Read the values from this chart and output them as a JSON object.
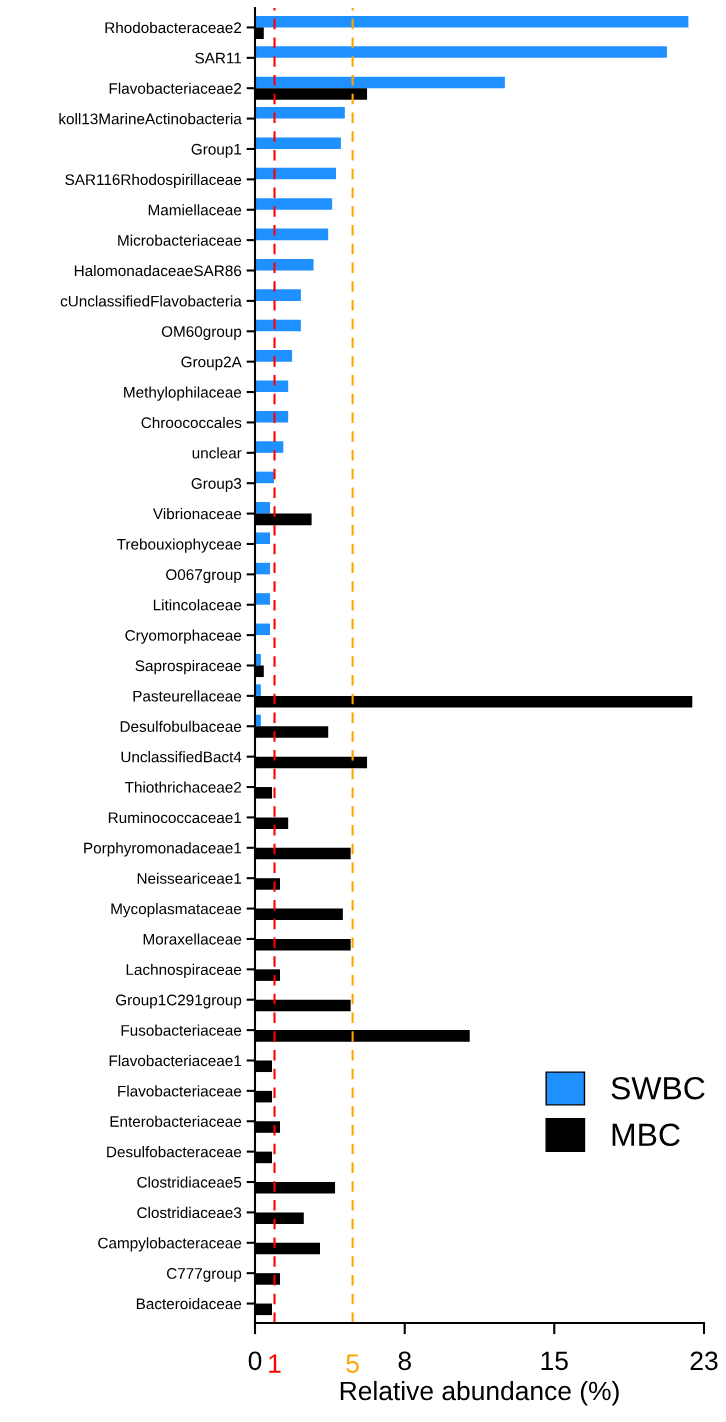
{
  "chart_data": {
    "type": "bar",
    "orientation": "horizontal",
    "xlabel": "Relative abundance (%)",
    "categories": [
      "Rhodobacteraceae2",
      "SAR11",
      "Flavobacteriaceae2",
      "koll13MarineActinobacteria",
      "Group1",
      "SAR116Rhodospirillaceae",
      "Mamiellaceae",
      "Microbacteriaceae",
      "HalomonadaceaeSAR86",
      "cUnclassifiedFlavobacteria",
      "OM60group",
      "Group2A",
      "Methylophilaceae",
      "Chroococcales",
      "unclear",
      "Group3",
      "Vibrionaceae",
      "Trebouxiophyceae",
      "O067group",
      "Litincolaceae",
      "Cryomorphaceae",
      "Saprospiraceae",
      "Pasteurellaceae",
      "Desulfobulbaceae",
      "UnclassifiedBact4",
      "Thiothrichaceae2",
      "Ruminococcaceae1",
      "Porphyromonadaceae1",
      "Neisseariceae1",
      "Mycoplasmataceae",
      "Moraxellaceae",
      "Lachnospiraceae",
      "Group1C291group",
      "Fusobacteriaceae",
      "Flavobacteriaceae1",
      "Flavobacteriaceae",
      "Enterobacteriaceae",
      "Desulfobacteraceae",
      "Clostridiaceae5",
      "Clostridiaceae3",
      "Campylobacteraceae",
      "C777group",
      "Bacteroidaceae"
    ],
    "series": [
      {
        "name": "SWBC",
        "color": "#1e90ff",
        "values": [
          22.2,
          21.1,
          12.8,
          4.6,
          4.4,
          4.15,
          3.95,
          3.75,
          3.0,
          2.35,
          2.35,
          1.9,
          1.7,
          1.7,
          1.45,
          0.97,
          0.77,
          0.77,
          0.77,
          0.77,
          0.77,
          0.3,
          0.3,
          0.3,
          null,
          null,
          null,
          null,
          null,
          null,
          null,
          null,
          null,
          null,
          null,
          null,
          null,
          null,
          null,
          null,
          null,
          null,
          null
        ]
      },
      {
        "name": "MBC",
        "color": "#000000",
        "values": [
          0.45,
          null,
          5.74,
          null,
          null,
          null,
          null,
          null,
          null,
          null,
          null,
          null,
          null,
          null,
          null,
          null,
          2.9,
          null,
          null,
          null,
          null,
          0.45,
          22.4,
          3.75,
          5.74,
          0.87,
          1.7,
          4.9,
          1.28,
          4.5,
          4.9,
          1.28,
          4.9,
          11.0,
          0.87,
          0.87,
          1.28,
          0.87,
          4.1,
          2.5,
          3.33,
          1.28,
          0.87
        ]
      }
    ],
    "xlim": [
      0,
      23
    ],
    "xticks": [
      0,
      {
        "value": 7.67,
        "label": "8"
      },
      {
        "value": 15.33,
        "label": "15"
      },
      23
    ],
    "ref_lines": [
      {
        "axis": "x",
        "value": 1,
        "label": "1",
        "color": "#ff0000",
        "line_style": "dashed"
      },
      {
        "axis": "x",
        "value": 5,
        "label": "5",
        "color": "#ffa500",
        "line_style": "dashed"
      }
    ],
    "grid": false,
    "legend": "bottom right"
  }
}
